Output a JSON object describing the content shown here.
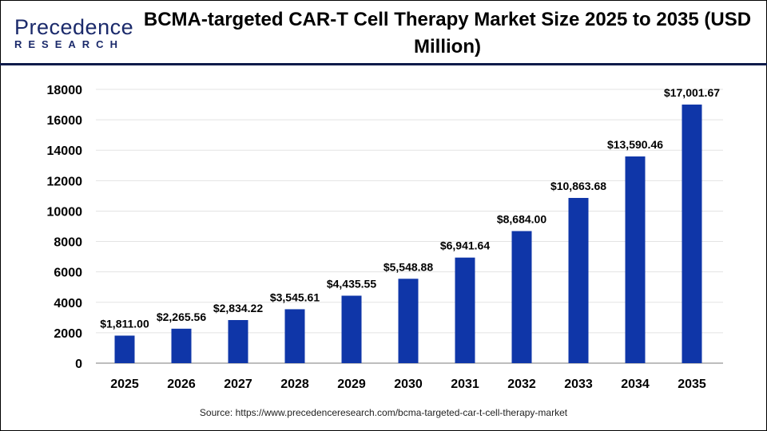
{
  "logo": {
    "line1": "Precedence",
    "line2": "RESEARCH"
  },
  "title": "BCMA-targeted CAR-T Cell Therapy Market Size 2025 to 2035 (USD Million)",
  "source": "Source: https://www.precedenceresearch.com/bcma-targeted-car-t-cell-therapy-market",
  "chart_data": {
    "type": "bar",
    "title": "BCMA-targeted CAR-T Cell Therapy Market Size 2025 to 2035 (USD Million)",
    "xlabel": "",
    "ylabel": "",
    "categories": [
      "2025",
      "2026",
      "2027",
      "2028",
      "2029",
      "2030",
      "2031",
      "2032",
      "2033",
      "2034",
      "2035"
    ],
    "values": [
      1811.0,
      2265.56,
      2834.22,
      3545.61,
      4435.55,
      5548.88,
      6941.64,
      8684.0,
      10863.68,
      13590.46,
      17001.67
    ],
    "data_labels": [
      "$1,811.00",
      "$2,265.56",
      "$2,834.22",
      "$3,545.61",
      "$4,435.55",
      "$5,548.88",
      "$6,941.64",
      "$8,684.00",
      "$10,863.68",
      "$13,590.46",
      "$17,001.67"
    ],
    "ylim": [
      0,
      18000
    ],
    "yticks": [
      0,
      2000,
      4000,
      6000,
      8000,
      10000,
      12000,
      14000,
      16000,
      18000
    ],
    "grid": true,
    "bar_color": "#0f36a8"
  }
}
